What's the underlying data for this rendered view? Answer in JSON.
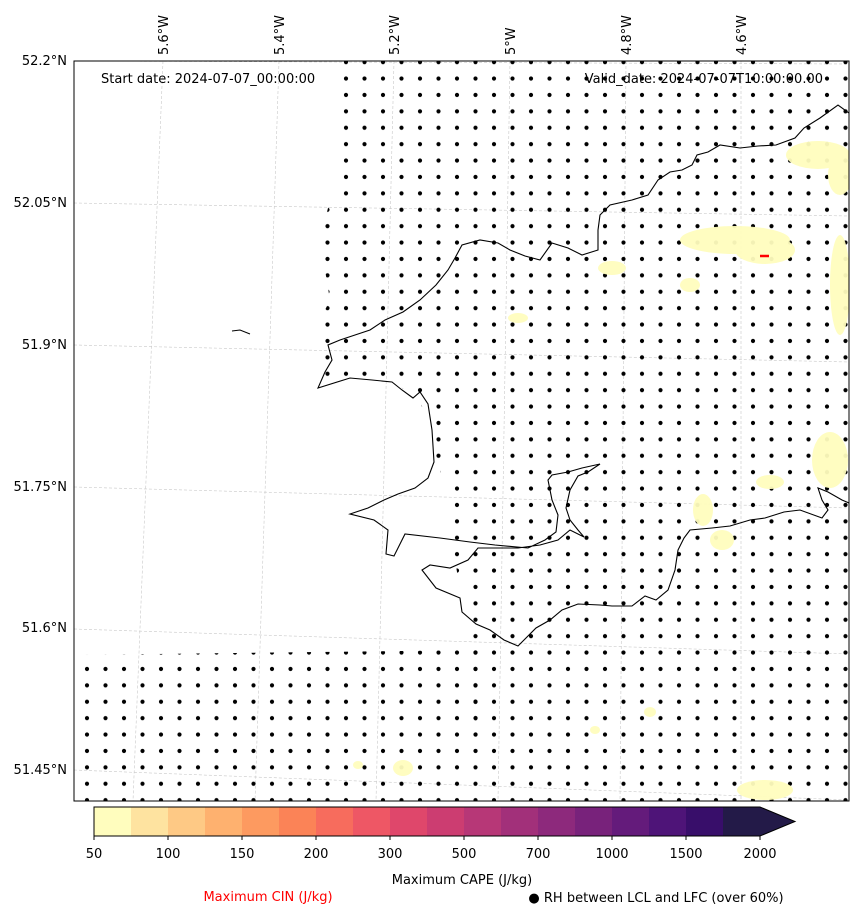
{
  "header": {
    "start_date": "Start date: 2024-07-07_00:00:00",
    "valid_date": "Valid_date: 2024-07-07T10:00:00.00"
  },
  "axes": {
    "lon_labels": [
      "5.6°W",
      "5.4°W",
      "5.2°W",
      "5°W",
      "4.8°W",
      "4.6°W"
    ],
    "lat_labels": [
      "52.2°N",
      "52.05°N",
      "51.9°N",
      "51.75°N",
      "51.6°N",
      "51.45°N"
    ]
  },
  "colorbar": {
    "label": "Maximum CAPE (J/kg)",
    "ticks": [
      "50",
      "100",
      "150",
      "200",
      "300",
      "500",
      "700",
      "1000",
      "1500",
      "2000"
    ],
    "colors": [
      "#fffdbe",
      "#fee3a0",
      "#fec985",
      "#feb16f",
      "#fd9a60",
      "#fb8357",
      "#f76c5d",
      "#ee5765",
      "#df476b",
      "#cc3d71",
      "#b73777",
      "#a2307a",
      "#8d297c",
      "#78227b",
      "#641b7b",
      "#4e1478",
      "#380e6a",
      "#231a48"
    ],
    "extend": "max"
  },
  "legend": {
    "cin_label": "Maximum CIN (J/kg)",
    "cin_color": "#ff0000",
    "rh_label": "● RH between LCL and LFC (over 60%)"
  }
}
